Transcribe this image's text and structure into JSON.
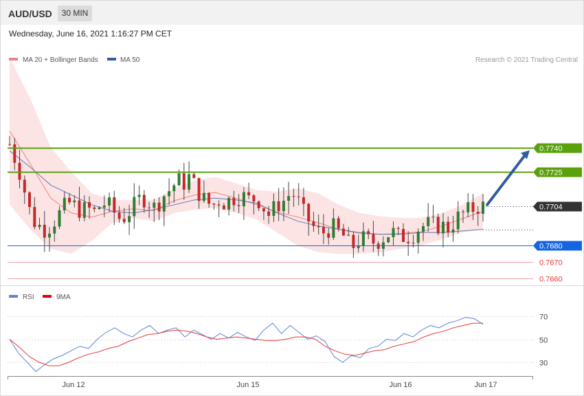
{
  "header": {
    "symbol": "AUD/USD",
    "timeframe": "30 MIN",
    "timestamp": "Wednesday, June 16, 2021 1:16:27 PM CET"
  },
  "legend": {
    "ma20_label": "MA 20 + Bollinger Bands",
    "ma50_label": "MA 50",
    "credit": "Research © 2021 Trading Central",
    "rsi_label": "RSI",
    "rsi_ma_label": "9MA"
  },
  "colors": {
    "bull": "#2e7d32",
    "bear": "#c62828",
    "bollinger_fill": "#fde4e4",
    "ma20": "#f08080",
    "ma50": "#5b79b8",
    "resistance": "#5aa10c",
    "current": "#333333",
    "pivot": "#1565e0",
    "support": "#e53935",
    "arrow": "#2f5d9e",
    "rsi": "#5b84d6",
    "rsi_ma": "#e53935"
  },
  "chart_data": [
    {
      "type": "candlestick",
      "title": "AUD/USD",
      "x_labels": [
        "Jun 12",
        "Jun 15",
        "Jun 16",
        "Jun 17"
      ],
      "ylim": [
        0.7655,
        0.7805
      ],
      "close_path": [
        0.7742,
        0.7732,
        0.7722,
        0.7705,
        0.7695,
        0.7692,
        0.769,
        0.7693,
        0.7698,
        0.7703,
        0.7706,
        0.7704,
        0.7701,
        0.7703,
        0.77,
        0.7704,
        0.7706,
        0.7703,
        0.7697,
        0.7697,
        0.7701,
        0.7705,
        0.771,
        0.7708,
        0.7703,
        0.7707,
        0.7712,
        0.7715,
        0.772,
        0.7718,
        0.7722,
        0.7716,
        0.771,
        0.7706,
        0.7705,
        0.7708,
        0.7706,
        0.7709,
        0.771,
        0.771,
        0.7708,
        0.7709,
        0.7707,
        0.7698,
        0.7702,
        0.7706,
        0.7708,
        0.7713,
        0.7708,
        0.77,
        0.7695,
        0.769,
        0.7687,
        0.769,
        0.7691,
        0.7688,
        0.7685,
        0.7678,
        0.7683,
        0.7684,
        0.7683,
        0.7682,
        0.7684,
        0.7687,
        0.7688,
        0.7685,
        0.7686,
        0.7686,
        0.769,
        0.7692,
        0.7693,
        0.7692,
        0.7693,
        0.769,
        0.7694,
        0.7698,
        0.77,
        0.7702,
        0.7704,
        0.7704
      ],
      "series": [
        {
          "name": "MA 20 + Bollinger Bands",
          "upper": [
            0.7795,
            0.777,
            0.774,
            0.7725,
            0.7712,
            0.7708,
            0.7708,
            0.7708,
            0.7715,
            0.772,
            0.7722,
            0.7718,
            0.7714,
            0.7713,
            0.7715,
            0.7712,
            0.7705,
            0.77,
            0.7698,
            0.7697,
            0.7697,
            0.77,
            0.7705,
            0.7712
          ],
          "lower": [
            0.7705,
            0.769,
            0.7678,
            0.7675,
            0.7683,
            0.7694,
            0.7697,
            0.7695,
            0.77,
            0.7702,
            0.7703,
            0.77,
            0.7696,
            0.7688,
            0.768,
            0.7676,
            0.7675,
            0.7675,
            0.7676,
            0.7678,
            0.768,
            0.7684,
            0.7688,
            0.769
          ]
        },
        {
          "name": "MA 50",
          "values": [
            0.7738,
            0.7728,
            0.7717,
            0.7711,
            0.7705,
            0.7701,
            0.77,
            0.7702,
            0.7705,
            0.7708,
            0.7709,
            0.7708,
            0.7706,
            0.77,
            0.7695,
            0.7692,
            0.769,
            0.7688,
            0.7687,
            0.7687,
            0.7688,
            0.7688,
            0.7689,
            0.769
          ]
        }
      ],
      "levels": [
        {
          "value": 0.774,
          "label": "0.7740",
          "kind": "resistance"
        },
        {
          "value": 0.7725,
          "label": "0.7725",
          "kind": "resistance"
        },
        {
          "value": 0.7704,
          "label": "0.7704",
          "kind": "current"
        },
        {
          "value": 0.768,
          "label": "0.7680",
          "kind": "pivot"
        },
        {
          "value": 0.767,
          "label": "0.7670",
          "kind": "support"
        },
        {
          "value": 0.766,
          "label": "0.7660",
          "kind": "support"
        }
      ]
    },
    {
      "type": "line",
      "title": "RSI",
      "ylim": [
        20,
        85
      ],
      "yticks": [
        30,
        50,
        70
      ],
      "series": [
        {
          "name": "RSI",
          "values": [
            50,
            38,
            30,
            22,
            28,
            33,
            36,
            40,
            44,
            42,
            50,
            56,
            60,
            55,
            52,
            58,
            62,
            55,
            58,
            60,
            52,
            58,
            54,
            50,
            55,
            51,
            56,
            52,
            49,
            58,
            64,
            55,
            62,
            56,
            50,
            53,
            48,
            35,
            30,
            36,
            34,
            42,
            44,
            50,
            49,
            55,
            52,
            58,
            62,
            60,
            64,
            66,
            69,
            68,
            63
          ]
        },
        {
          "name": "9MA",
          "values": [
            50,
            43,
            35,
            30,
            27,
            27,
            30,
            34,
            37,
            39,
            42,
            44,
            48,
            51,
            54,
            55,
            57,
            58,
            57,
            55,
            52,
            50,
            51,
            52,
            51,
            50,
            49,
            49,
            50,
            52,
            52,
            50,
            44,
            40,
            37,
            36,
            38,
            40,
            41,
            44,
            46,
            48,
            52,
            55,
            57,
            60,
            62,
            64,
            64
          ]
        }
      ]
    }
  ]
}
